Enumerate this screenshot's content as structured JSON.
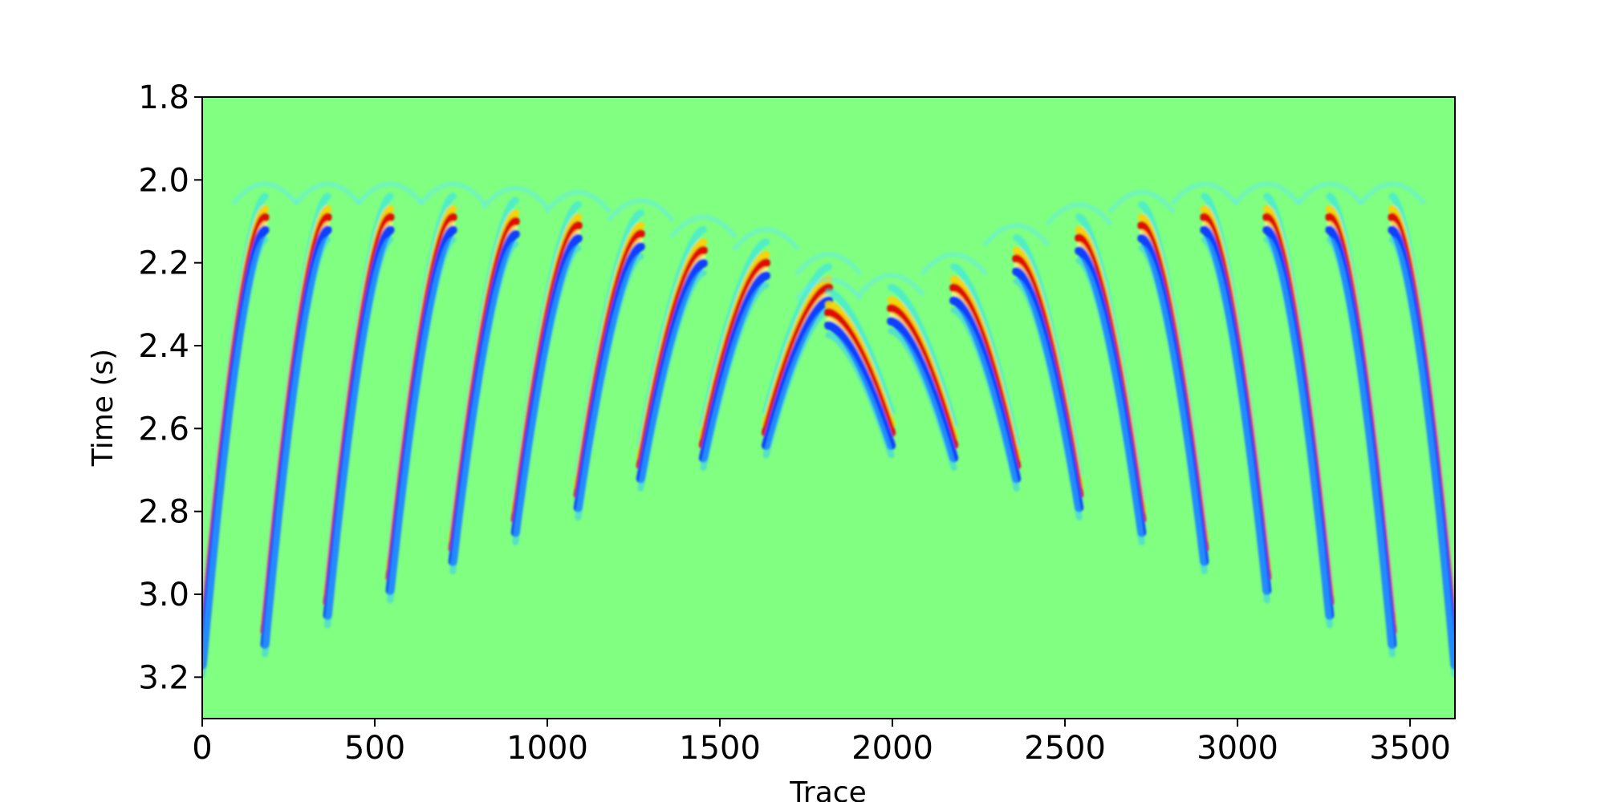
{
  "chart_data": {
    "type": "heatmap",
    "title": "",
    "xlabel": "Trace",
    "ylabel": "Time (s)",
    "xlim": [
      0,
      3630
    ],
    "ylim": [
      1.8,
      3.3
    ],
    "y_axis_inverted": true,
    "xticks": [
      "0",
      "500",
      "1000",
      "1500",
      "2000",
      "2500",
      "3000",
      "3500"
    ],
    "yticks": [
      "1.8",
      "2.0",
      "2.2",
      "2.4",
      "2.6",
      "2.8",
      "3.0",
      "3.2"
    ],
    "colormap": "jet",
    "background_color": "#80ff80",
    "shots": {
      "count": 20,
      "traces_per_shot": 181.5,
      "apex_time_s": [
        2.0,
        2.0,
        2.0,
        2.0,
        2.01,
        2.02,
        2.04,
        2.08,
        2.11,
        2.17,
        2.23,
        2.22,
        2.17,
        2.1,
        2.05,
        2.02,
        2.0,
        2.0,
        2.0,
        2.0
      ],
      "flank_end_time_s": [
        3.05,
        3.0,
        2.93,
        2.87,
        2.8,
        2.73,
        2.67,
        2.6,
        2.55,
        2.52,
        2.52,
        2.55,
        2.6,
        2.67,
        2.73,
        2.8,
        2.87,
        2.93,
        3.0,
        3.05
      ]
    }
  }
}
